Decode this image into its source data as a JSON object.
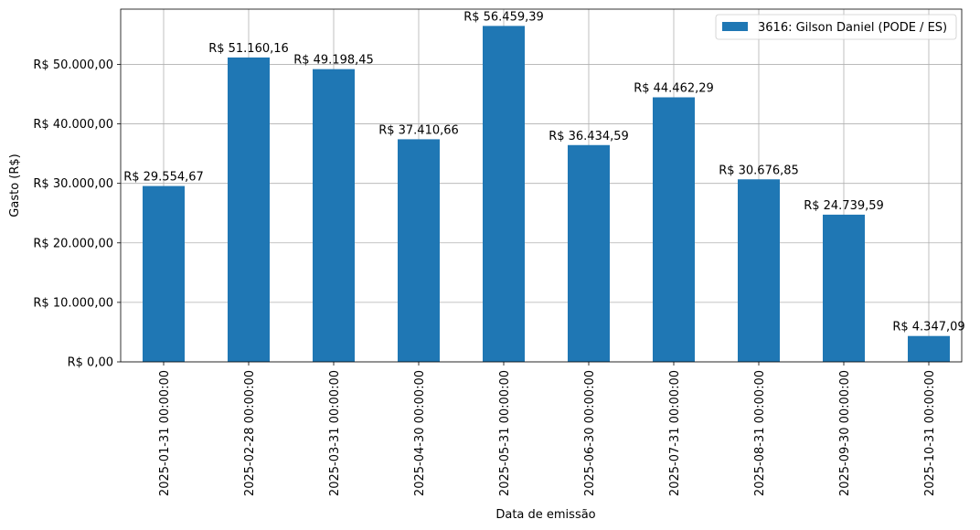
{
  "chart_data": {
    "type": "bar",
    "categories": [
      "2025-01-31 00:00:00",
      "2025-02-28 00:00:00",
      "2025-03-31 00:00:00",
      "2025-04-30 00:00:00",
      "2025-05-31 00:00:00",
      "2025-06-30 00:00:00",
      "2025-07-31 00:00:00",
      "2025-08-31 00:00:00",
      "2025-09-30 00:00:00",
      "2025-10-31 00:00:00"
    ],
    "series": [
      {
        "name": "3616: Gilson Daniel (PODE / ES)",
        "color": "#1f77b4",
        "values": [
          29554.67,
          51160.16,
          49198.45,
          37410.66,
          56459.39,
          36434.59,
          44462.29,
          30676.85,
          24739.59,
          4347.09
        ],
        "labels": [
          "R$ 29.554,67",
          "R$ 51.160,16",
          "R$ 49.198,45",
          "R$ 37.410,66",
          "R$ 56.459,39",
          "R$ 36.434,59",
          "R$ 44.462,29",
          "R$ 30.676,85",
          "R$ 24.739,59",
          "R$ 4.347,09"
        ]
      }
    ],
    "xlabel": "Data de emissão",
    "ylabel": "Gasto (R$)",
    "ylim": [
      0,
      59282.36
    ],
    "yticks": [
      0,
      10000,
      20000,
      30000,
      40000,
      50000
    ],
    "ytick_labels": [
      "R$ 0,00",
      "R$ 10.000,00",
      "R$ 20.000,00",
      "R$ 30.000,00",
      "R$ 40.000,00",
      "R$ 50.000,00"
    ],
    "grid": true,
    "legend_position": "top-right"
  }
}
